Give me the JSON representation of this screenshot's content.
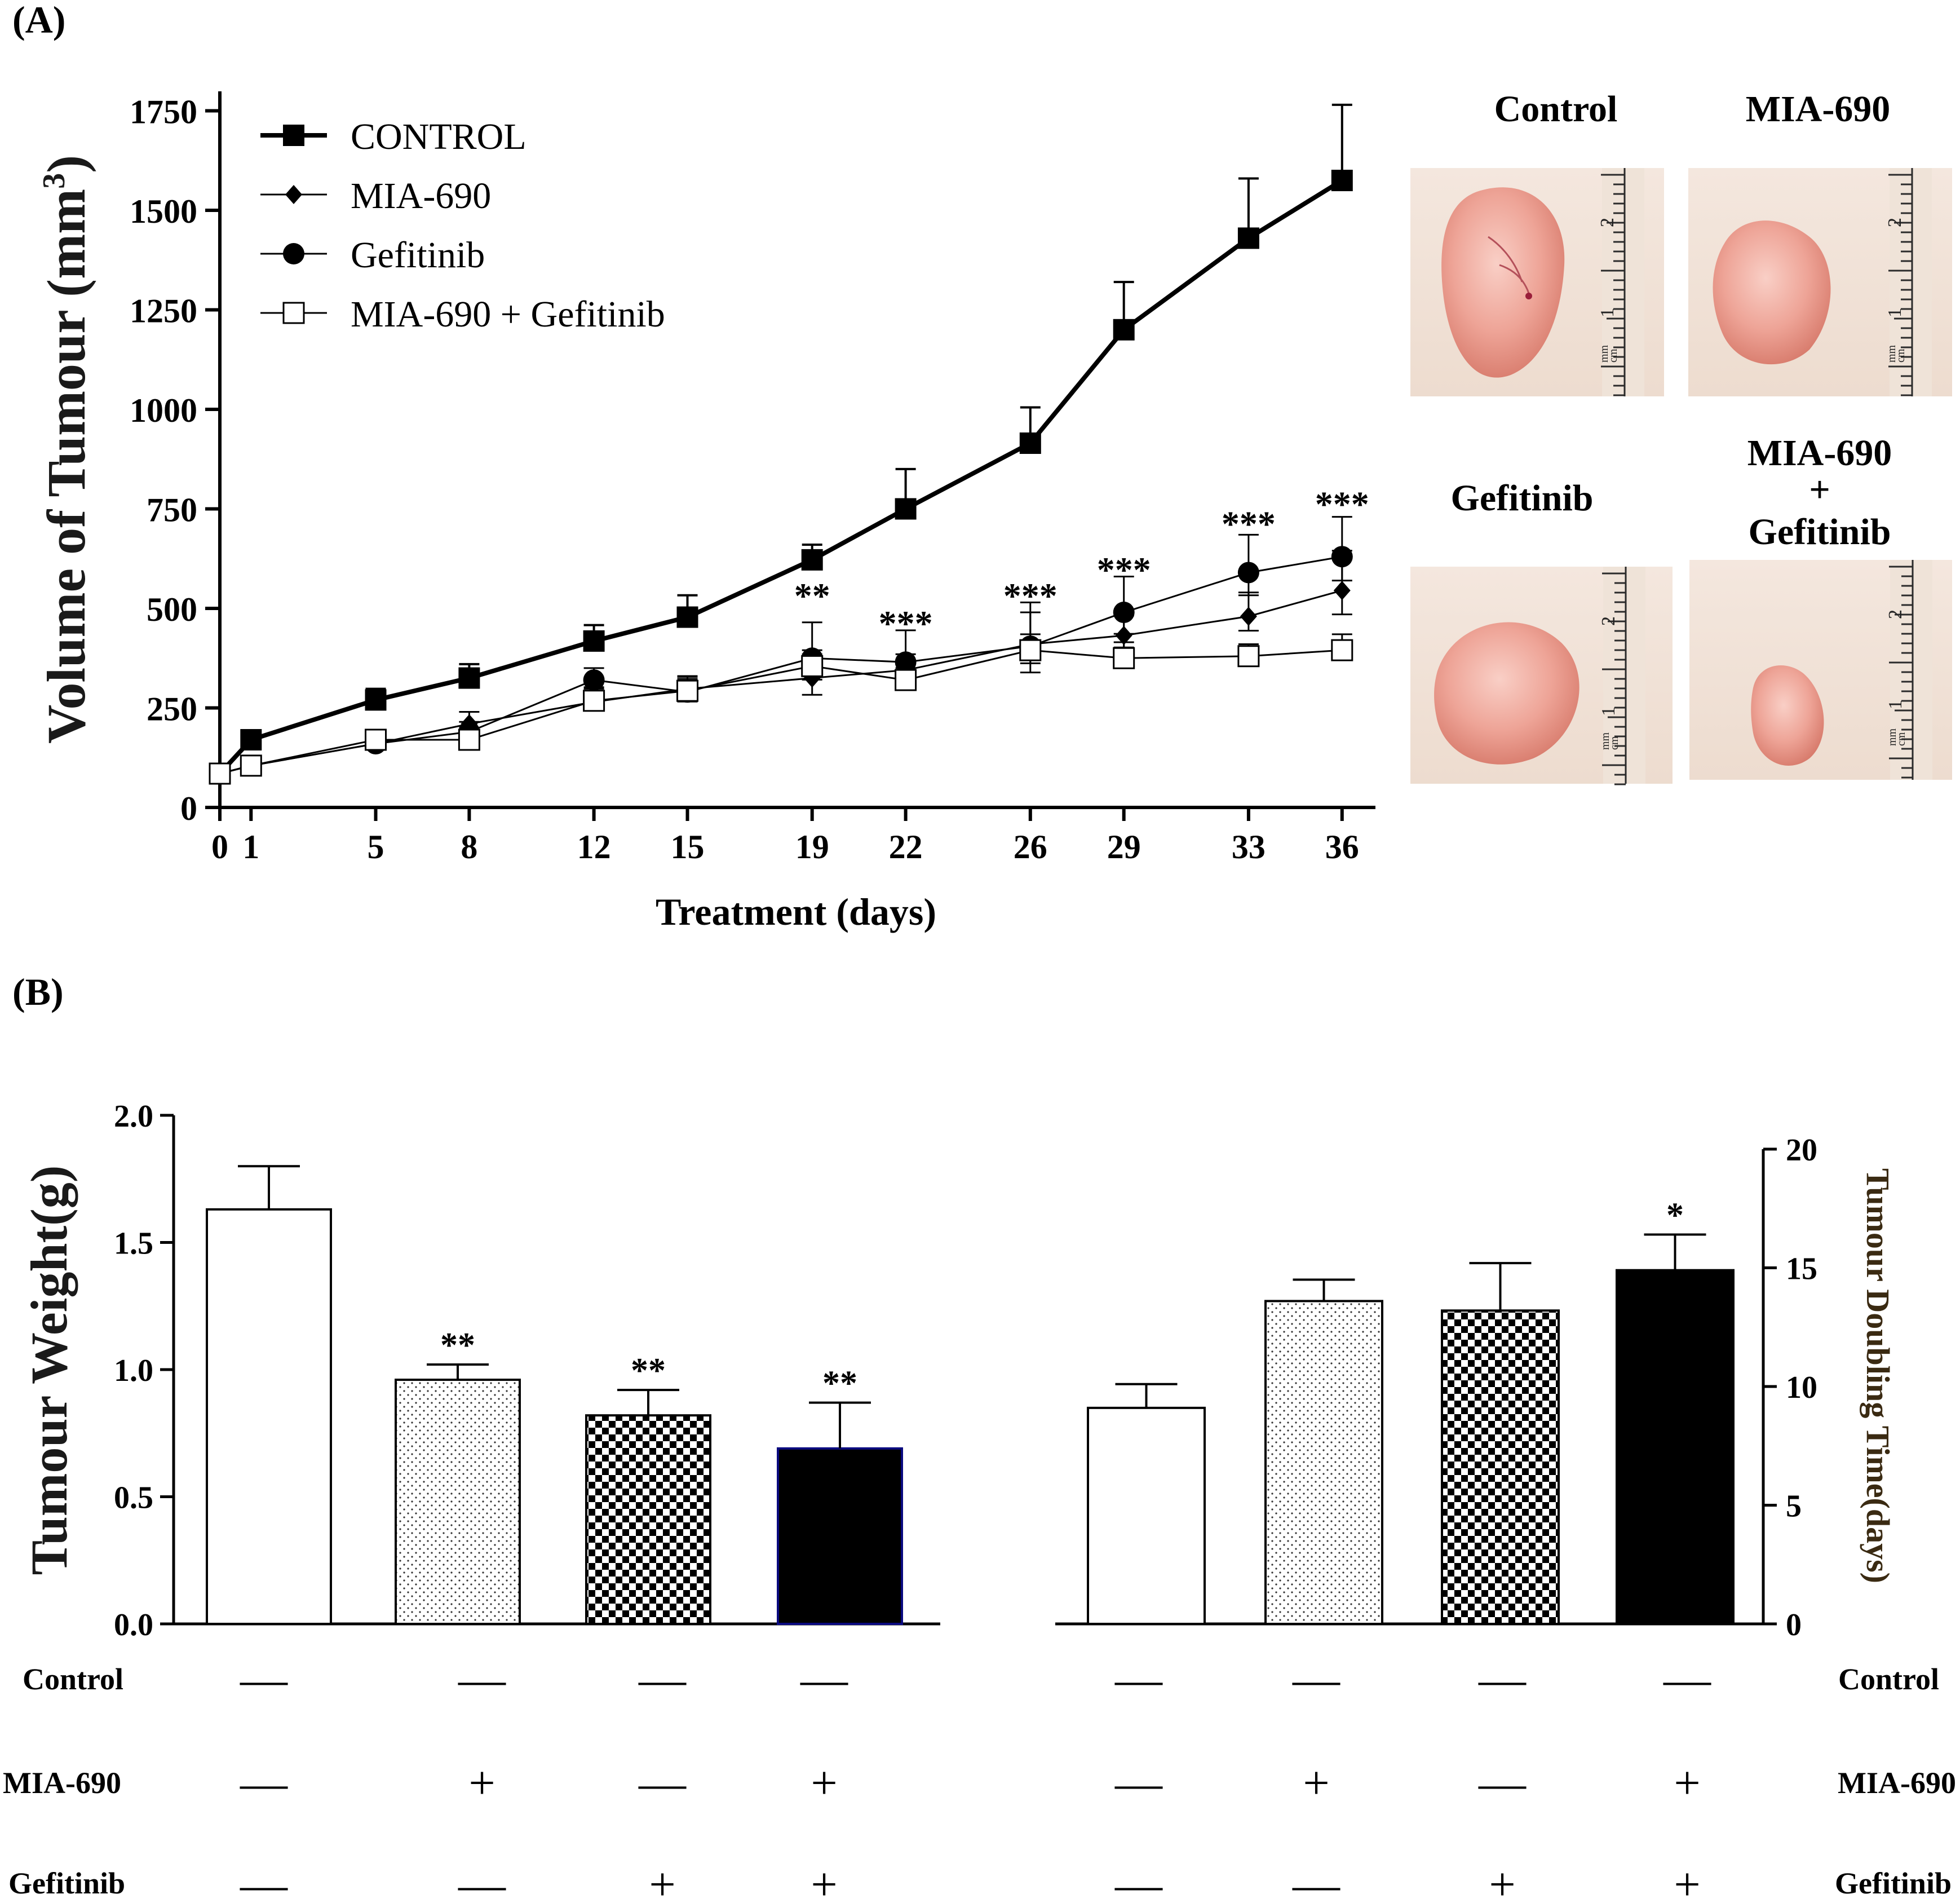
{
  "panel_a": {
    "label": "(A)",
    "chart_data": {
      "type": "line",
      "ylabel_main": "Volume of Tumour (mm",
      "ylabel_sup": "3",
      "ylabel_close": ")",
      "xlabel": "Treatment (days)",
      "x": [
        0,
        1,
        5,
        8,
        12,
        15,
        19,
        22,
        26,
        29,
        33,
        36
      ],
      "ylim": [
        0,
        1800
      ],
      "yticks": [
        0,
        250,
        500,
        750,
        1000,
        1250,
        1500,
        1750
      ],
      "xticks": [
        0,
        1,
        5,
        8,
        12,
        15,
        19,
        22,
        26,
        29,
        33,
        36
      ],
      "legend_position": "top-left",
      "series": [
        {
          "name": "CONTROL",
          "marker": "square-filled",
          "line": "thick",
          "values": [
            85,
            170,
            270,
            325,
            418,
            478,
            622,
            750,
            915,
            1200,
            1430,
            1575
          ],
          "errors": [
            0,
            20,
            28,
            35,
            40,
            55,
            38,
            100,
            90,
            120,
            150,
            190
          ]
        },
        {
          "name": "MIA-690",
          "marker": "diamond-filled",
          "line": "thin",
          "values": [
            85,
            105,
            160,
            210,
            265,
            298,
            325,
            345,
            410,
            432,
            480,
            545
          ],
          "errors": [
            0,
            15,
            15,
            30,
            20,
            30,
            70,
            40,
            80,
            50,
            60,
            100
          ]
        },
        {
          "name": "Gefitinib",
          "marker": "circle-filled",
          "line": "thin",
          "values": [
            85,
            105,
            160,
            190,
            320,
            290,
            375,
            365,
            405,
            490,
            590,
            630
          ],
          "errors": [
            0,
            15,
            15,
            25,
            30,
            40,
            90,
            80,
            110,
            90,
            95,
            100
          ]
        },
        {
          "name": "MIA-690 + Gefitinib",
          "marker": "square-open",
          "line": "thin",
          "values": [
            85,
            105,
            170,
            170,
            268,
            293,
            355,
            320,
            395,
            375,
            380,
            395
          ],
          "errors": [
            0,
            15,
            15,
            30,
            30,
            30,
            30,
            30,
            40,
            40,
            30,
            40
          ]
        }
      ],
      "annotations": [
        {
          "x": 19,
          "text": "**",
          "y": 530
        },
        {
          "x": 22,
          "text": "***",
          "y": 460
        },
        {
          "x": 26,
          "text": "***",
          "y": 530
        },
        {
          "x": 29,
          "text": "***",
          "y": 595
        },
        {
          "x": 33,
          "text": "***",
          "y": 710
        },
        {
          "x": 36,
          "text": "***",
          "y": 760
        }
      ]
    },
    "photos": [
      {
        "label": "Control",
        "size": "large"
      },
      {
        "label": "MIA-690",
        "size": "medium"
      },
      {
        "label": "Gefitinib",
        "size": "medium"
      },
      {
        "label_lines": [
          "MIA-690",
          "+",
          "Gefitinib"
        ],
        "size": "small"
      }
    ],
    "ruler_numbers": [
      "2",
      "1",
      "mm",
      "cm"
    ]
  },
  "panel_b": {
    "label": "(B)",
    "chart_data": [
      {
        "type": "bar",
        "ylabel": "Tumour Weight(g)",
        "ylim": [
          0,
          2.0
        ],
        "yticks": [
          "0.0",
          "0.5",
          "1.0",
          "1.5",
          "2.0"
        ],
        "categories": [
          "Control",
          "MIA-690",
          "Gefitinib",
          "MIA-690 + Gefitinib"
        ],
        "values": [
          1.63,
          0.96,
          0.82,
          0.69
        ],
        "errors": [
          0.17,
          0.06,
          0.1,
          0.18
        ],
        "patterns": [
          "white",
          "dots",
          "checker",
          "black"
        ],
        "significance": [
          "",
          "**",
          "**",
          "**"
        ]
      },
      {
        "type": "bar",
        "ylabel": "Tumour Doubling Time(days)",
        "ylim": [
          0,
          20
        ],
        "yticks": [
          "0",
          "5",
          "10",
          "15",
          "20"
        ],
        "categories": [
          "Control",
          "MIA-690",
          "Gefitinib",
          "MIA-690 + Gefitinib"
        ],
        "values": [
          9.1,
          13.6,
          13.2,
          14.9
        ],
        "errors": [
          1.0,
          0.9,
          2.0,
          1.5
        ],
        "patterns": [
          "white",
          "dots",
          "checker",
          "black"
        ],
        "significance": [
          "",
          "",
          "",
          "*"
        ]
      }
    ],
    "treatment_table": {
      "rows": [
        {
          "label": "Control",
          "signs": [
            "—",
            "—",
            "—",
            "—"
          ]
        },
        {
          "label": "MIA-690",
          "signs": [
            "—",
            "+",
            "—",
            "+"
          ]
        },
        {
          "label": "Gefitinib",
          "signs": [
            "—",
            "—",
            "+",
            "+"
          ]
        }
      ]
    }
  },
  "colors": {
    "axis": "#000000",
    "ylabel_a": "#1a1a1a",
    "ylabel_b_left": "#1a1a1a",
    "ylabel_b_right": "#3a2a12",
    "bar_outline_black": "#0a0a80",
    "tumor_light": "#f3b3a8",
    "tumor_dark": "#dc7f74",
    "photo_bg": "#f6ebe3",
    "ruler": "#2b2b2b"
  }
}
